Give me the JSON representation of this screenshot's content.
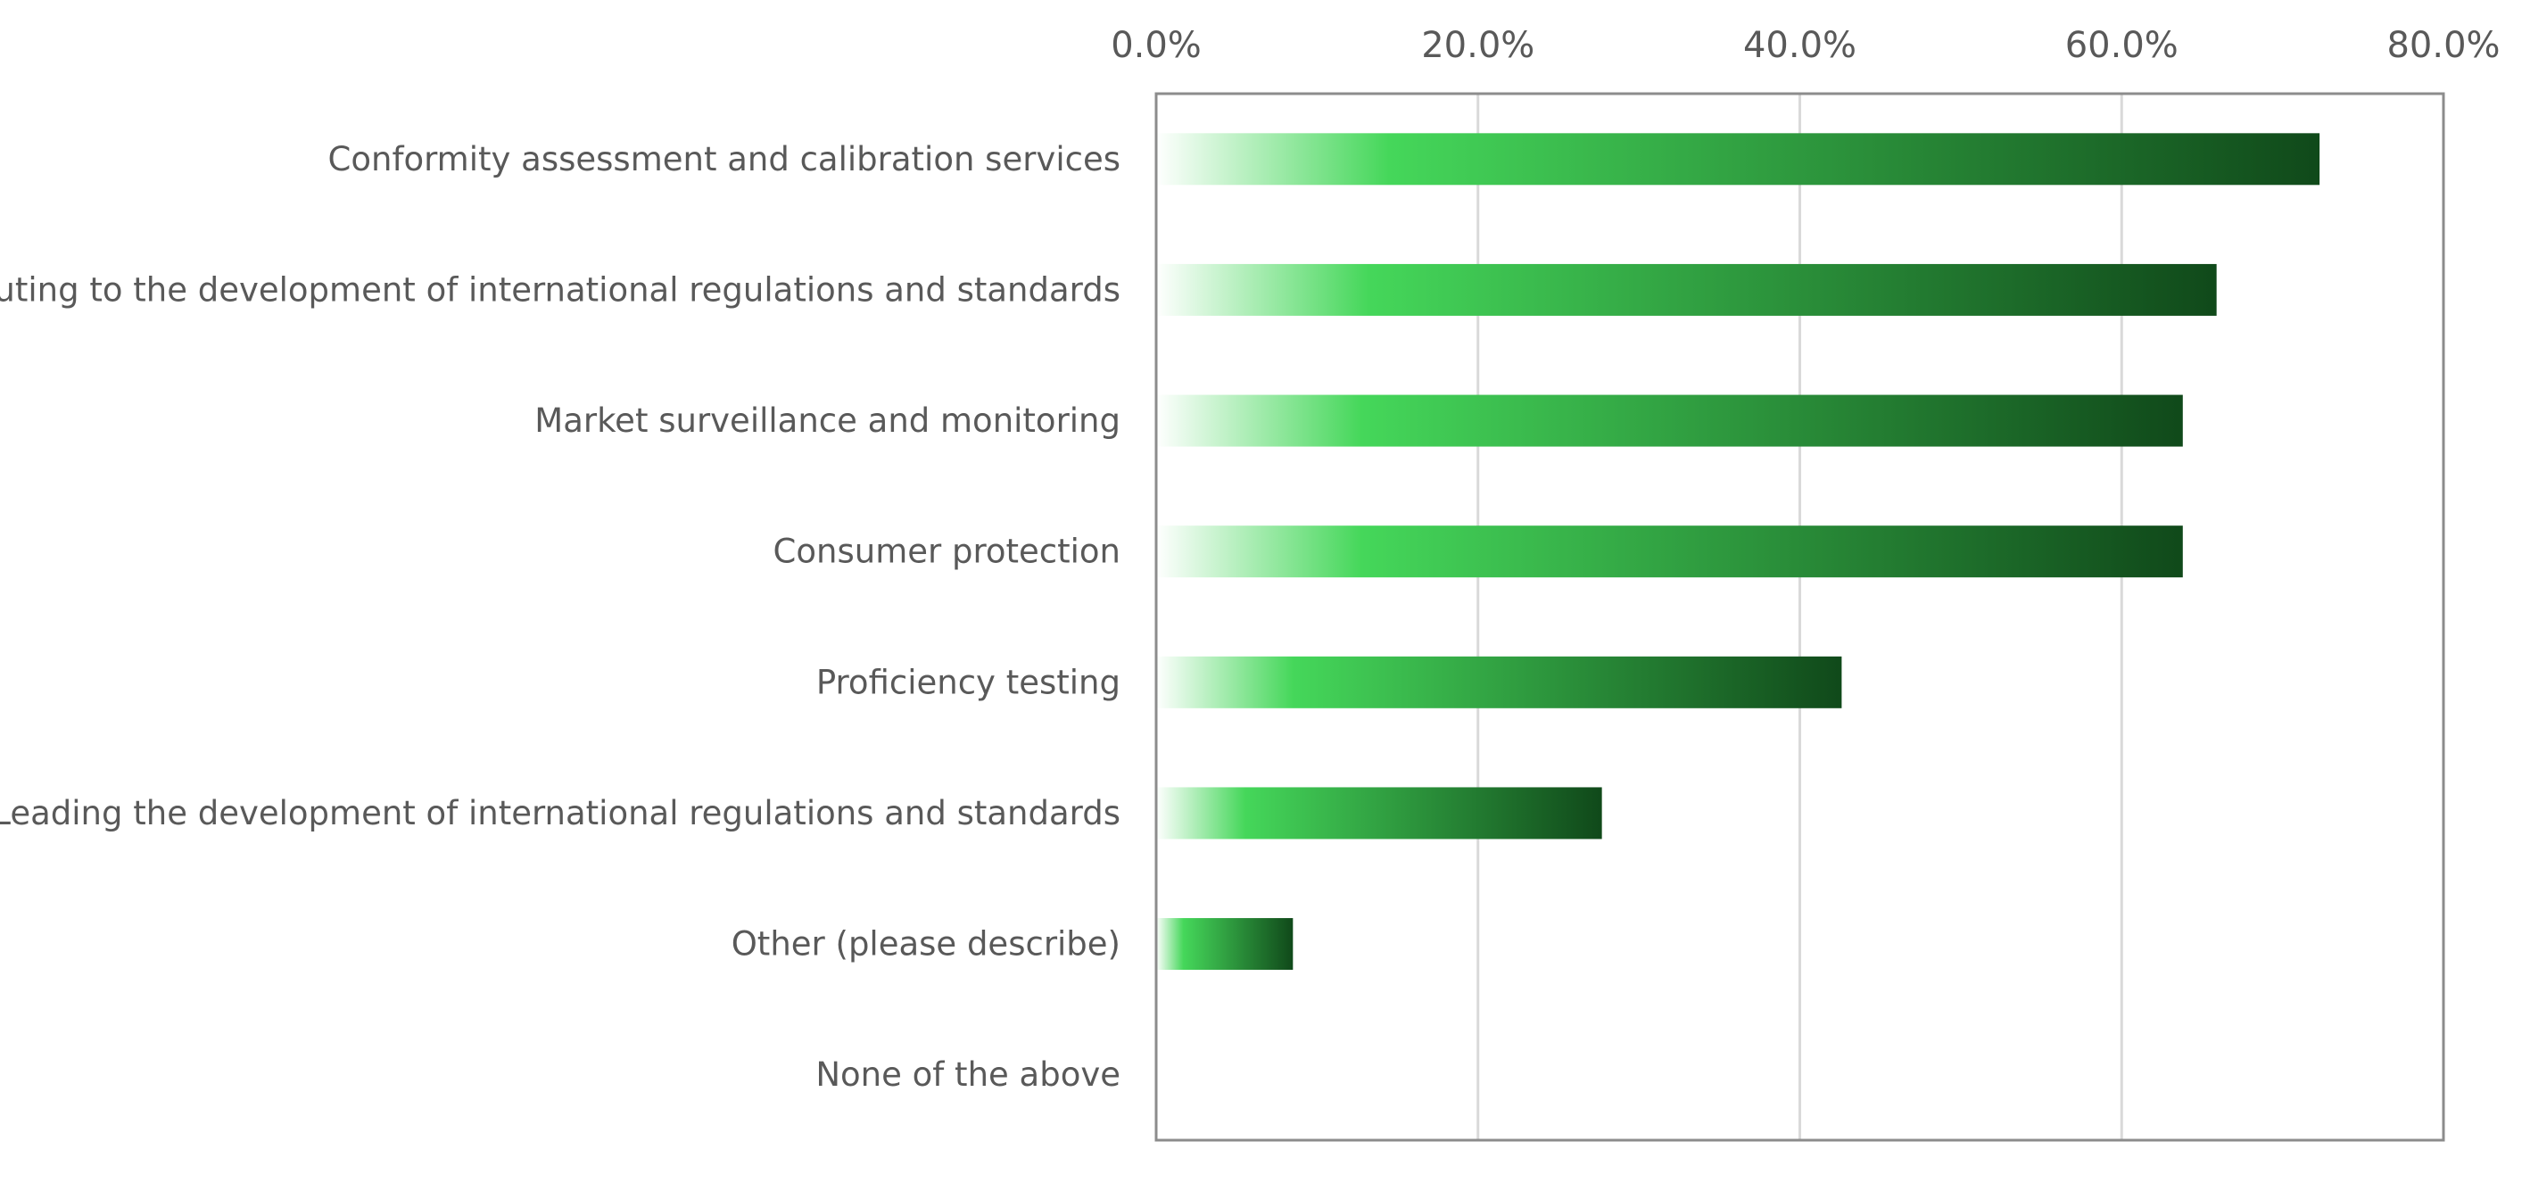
{
  "chart_data": {
    "type": "bar",
    "orientation": "horizontal",
    "title": "",
    "xlabel": "",
    "ylabel": "",
    "xlim": [
      0,
      0.8
    ],
    "x_ticks": [
      0,
      0.2,
      0.4,
      0.6,
      0.8
    ],
    "x_tick_labels": [
      "0.0%",
      "20.0%",
      "40.0%",
      "60.0%",
      "80.0%"
    ],
    "x_axis_position": "top",
    "grid": true,
    "legend": "none",
    "categories": [
      "Conformity assessment and calibration services",
      "Contributing to the development of international regulations and standards",
      "Market surveillance and monitoring",
      "Consumer protection",
      "Proficiency testing",
      "Leading the development of international regulations and standards",
      "Other (please describe)",
      "None of the above"
    ],
    "values": [
      0.723,
      0.659,
      0.638,
      0.638,
      0.426,
      0.277,
      0.085,
      0.0
    ],
    "bar_gradient": [
      "#ffffff",
      "#45d75a",
      "#10491a"
    ]
  }
}
